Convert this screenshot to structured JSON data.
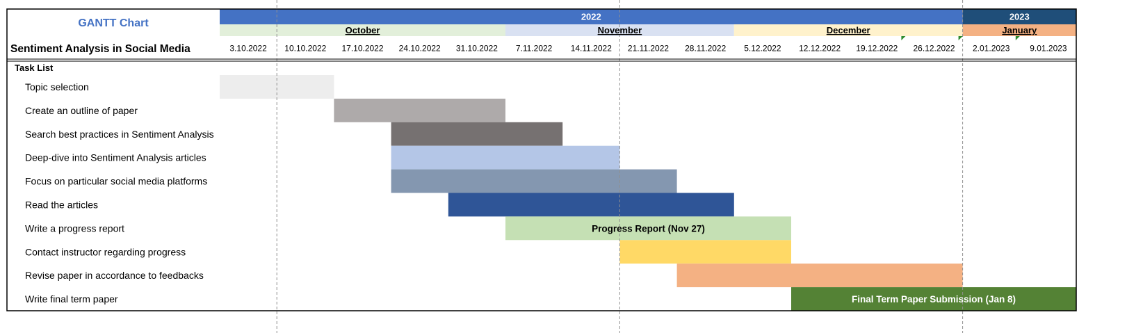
{
  "title": "GANTT Chart",
  "project_name": "Sentiment Analysis in Social Media",
  "task_list_label": "Task List",
  "colors": {
    "year_2022": "#4472C4",
    "year_2023": "#1F4E79",
    "month_october": "#E2EFDA",
    "month_november": "#D9E1F2",
    "month_december": "#FFF2CC",
    "month_january": "#F4B183",
    "title_text": "#4472C4"
  },
  "chart_data": {
    "type": "gantt",
    "title": "GANTT Chart",
    "years": [
      {
        "label": "2022",
        "start_week": 0,
        "span": 13
      },
      {
        "label": "2023",
        "start_week": 13,
        "span": 2
      }
    ],
    "months": [
      {
        "label": "October",
        "start_week": 0,
        "span": 5
      },
      {
        "label": "November",
        "start_week": 5,
        "span": 4
      },
      {
        "label": "December",
        "start_week": 9,
        "span": 4
      },
      {
        "label": "January",
        "start_week": 13,
        "span": 2
      }
    ],
    "weeks": [
      "3.10.2022",
      "10.10.2022",
      "17.10.2022",
      "24.10.2022",
      "31.10.2022",
      "7.11.2022",
      "14.11.2022",
      "21.11.2022",
      "28.11.2022",
      "5.12.2022",
      "12.12.2022",
      "19.12.2022",
      "26.12.2022",
      "2.01.2023",
      "9.01.2023"
    ],
    "tasks": [
      {
        "name": "Topic selection",
        "start": "3.10.2022",
        "end": "10.10.2022",
        "color": "#EDEDED"
      },
      {
        "name": "Create an outline of paper",
        "start": "17.10.2022",
        "end": "31.10.2022",
        "color": "#AEAAAA"
      },
      {
        "name": "Search best practices in Sentiment Analysis",
        "start": "24.10.2022",
        "end": "7.11.2022",
        "color": "#767171"
      },
      {
        "name": "Deep-dive into Sentiment Analysis articles",
        "start": "24.10.2022",
        "end": "14.11.2022",
        "color": "#B4C6E7"
      },
      {
        "name": "Focus on particular social media platforms",
        "start": "24.10.2022",
        "end": "21.11.2022",
        "color": "#8497B0"
      },
      {
        "name": "Read the articles",
        "start": "31.10.2022",
        "end": "28.11.2022",
        "color": "#2F5597"
      },
      {
        "name": "Write a progress report",
        "start": "7.11.2022",
        "end": "5.12.2022",
        "color": "#C5E0B4",
        "label": "Progress Report (Nov 27)",
        "label_color": "#000000"
      },
      {
        "name": "Contact instructor regarding progress",
        "start": "21.11.2022",
        "end": "5.12.2022",
        "color": "#FFD966"
      },
      {
        "name": "Revise paper in accordance to feedbacks",
        "start": "28.11.2022",
        "end": "26.12.2022",
        "color": "#F4B183"
      },
      {
        "name": "Write final term paper",
        "start": "12.12.2022",
        "end": "9.01.2023",
        "color": "#548235",
        "label": "Final Term Paper Submission (Jan 8)",
        "label_color": "#FFFFFF"
      }
    ],
    "milestone_lines": [
      "10.10.2022",
      "21.11.2022",
      "2.01.2023"
    ]
  }
}
